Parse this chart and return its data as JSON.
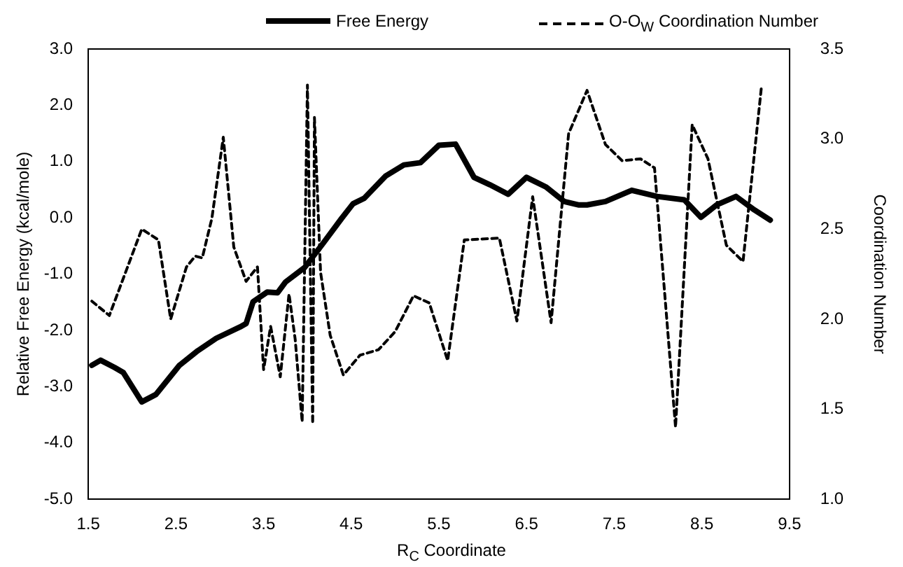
{
  "chart_data": {
    "type": "line",
    "xlabel": "R$_{C}$ Coordinate",
    "ylabel": "Relative Free Energy (kcal/mole)",
    "y2label": "Coordination Number",
    "xlim": [
      1.5,
      9.5
    ],
    "xticks": [
      {
        "value": 1.5,
        "label": "1.5"
      },
      {
        "value": 2.5,
        "label": "2.5"
      },
      {
        "value": 3.5,
        "label": "3.5"
      },
      {
        "value": 4.5,
        "label": "4.5"
      },
      {
        "value": 5.5,
        "label": "5.5"
      },
      {
        "value": 6.5,
        "label": "6.5"
      },
      {
        "value": 7.5,
        "label": "7.5"
      },
      {
        "value": 8.5,
        "label": "8.5"
      },
      {
        "value": 9.5,
        "label": "9.5"
      }
    ],
    "ylim": [
      -5,
      3
    ],
    "yticks": [
      {
        "value": -5,
        "label": "-5.0"
      },
      {
        "value": -4,
        "label": "-4.0"
      },
      {
        "value": -3,
        "label": "-3.0"
      },
      {
        "value": -2,
        "label": "-2.0"
      },
      {
        "value": -1,
        "label": "-1.0"
      },
      {
        "value": 0,
        "label": "0.0"
      },
      {
        "value": 1,
        "label": "1.0"
      },
      {
        "value": 2,
        "label": "2.0"
      },
      {
        "value": 3,
        "label": "3.0"
      }
    ],
    "y2lim": [
      1,
      3.5
    ],
    "y2ticks": [
      {
        "value": 1,
        "label": "1.0"
      },
      {
        "value": 1.5,
        "label": "1.5"
      },
      {
        "value": 2,
        "label": "2.0"
      },
      {
        "value": 2.5,
        "label": "2.5"
      },
      {
        "value": 3,
        "label": "3.0"
      },
      {
        "value": 3.5,
        "label": "3.5"
      }
    ],
    "grid": false,
    "legend": "top",
    "marker": "none",
    "series": [
      {
        "name": "Free Energy",
        "color": "#000000",
        "line_style": "solid",
        "x": [
          1.54,
          1.64,
          1.8,
          1.9,
          2.11,
          2.27,
          2.54,
          2.75,
          2.96,
          3.23,
          3.3,
          3.38,
          3.54,
          3.66,
          3.75,
          3.97,
          4.18,
          4.39,
          4.52,
          4.65,
          4.89,
          5.1,
          5.29,
          5.5,
          5.69,
          5.9,
          6.08,
          6.29,
          6.5,
          6.72,
          6.93,
          7.09,
          7.19,
          7.4,
          7.7,
          7.99,
          8.3,
          8.49,
          8.67,
          8.89,
          9.1,
          9.28
        ],
        "values": [
          -2.62,
          -2.53,
          -2.66,
          -2.75,
          -3.27,
          -3.14,
          -2.62,
          -2.36,
          -2.14,
          -1.94,
          -1.88,
          -1.49,
          -1.32,
          -1.33,
          -1.14,
          -0.88,
          -0.45,
          -0.01,
          0.25,
          0.35,
          0.74,
          0.94,
          0.98,
          1.29,
          1.31,
          0.72,
          0.59,
          0.42,
          0.72,
          0.55,
          0.29,
          0.23,
          0.23,
          0.29,
          0.49,
          0.38,
          0.32,
          0.01,
          0.23,
          0.38,
          0.14,
          -0.04
        ]
      },
      {
        "name": "O-O$_{W}$ Coordination Number",
        "color": "#000000",
        "line_style": "dashed",
        "axis": "y2",
        "x": [
          1.54,
          1.74,
          2.11,
          2.3,
          2.44,
          2.62,
          2.72,
          2.8,
          2.91,
          3.04,
          3.16,
          3.3,
          3.43,
          3.5,
          3.58,
          3.69,
          3.79,
          3.86,
          3.94,
          4.0,
          4.06,
          4.08,
          4.15,
          4.26,
          4.41,
          4.6,
          4.81,
          5.0,
          5.21,
          5.39,
          5.6,
          5.79,
          6.19,
          6.39,
          6.57,
          6.78,
          6.98,
          7.19,
          7.4,
          7.59,
          7.8,
          7.96,
          8.2,
          8.39,
          8.57,
          8.78,
          8.97,
          9.18
        ],
        "values": [
          2.1,
          2.02,
          2.5,
          2.44,
          2.0,
          2.29,
          2.35,
          2.34,
          2.56,
          3.01,
          2.4,
          2.21,
          2.29,
          1.72,
          1.96,
          1.68,
          2.14,
          1.89,
          1.43,
          3.3,
          1.42,
          3.12,
          2.26,
          1.91,
          1.69,
          1.8,
          1.83,
          1.93,
          2.13,
          2.09,
          1.77,
          2.44,
          2.45,
          1.99,
          2.68,
          1.98,
          3.03,
          3.27,
          2.97,
          2.88,
          2.89,
          2.84,
          1.4,
          3.08,
          2.89,
          2.41,
          2.32,
          3.29
        ]
      }
    ]
  }
}
